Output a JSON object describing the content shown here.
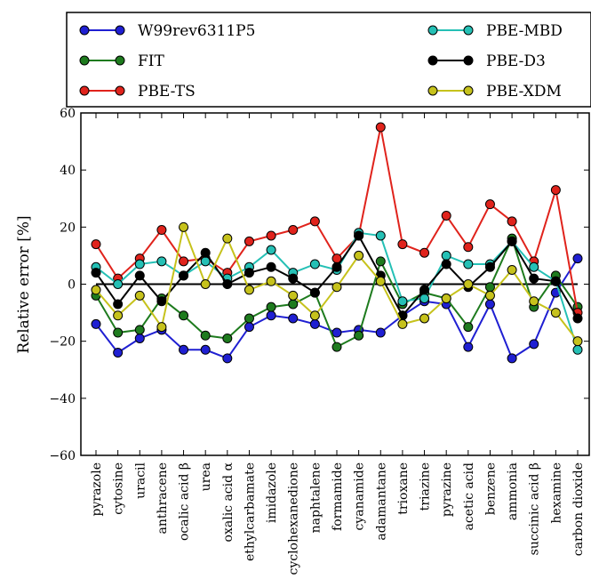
{
  "chart_data": {
    "type": "line",
    "title": "",
    "xlabel": "",
    "ylabel": "Relative error [%]",
    "ylim": [
      -60,
      60
    ],
    "yticks": [
      -60,
      -40,
      -20,
      0,
      20,
      40,
      60
    ],
    "ytick_labels": [
      "−60",
      "−40",
      "−20",
      "0",
      "20",
      "40",
      "60"
    ],
    "grid": false,
    "legend_position": "top",
    "zero_line": true,
    "categories": [
      "pyrazole",
      "cytosine",
      "uracil",
      "anthracene",
      "ocalic acid β",
      "urea",
      "oxalic acid α",
      "ethylcarbamate",
      "imidazole",
      "cyclohexanedione",
      "naphtalene",
      "formamide",
      "cyanamide",
      "adamantane",
      "trioxane",
      "triazine",
      "pyrazine",
      "acetic acid",
      "benzene",
      "ammonia",
      "succinic acid β",
      "hexamine",
      "carbon dioxide"
    ],
    "series": [
      {
        "name": "W99rev6311P5",
        "color": "#1f1fd2",
        "values": [
          -14,
          -24,
          -19,
          -16,
          -23,
          -23,
          -26,
          -15,
          -11,
          -12,
          -14,
          -17,
          -16,
          -17,
          -11,
          -6,
          -7,
          -22,
          -7,
          -26,
          -21,
          -3,
          9
        ]
      },
      {
        "name": "FIT",
        "color": "#1e7b1e",
        "values": [
          -4,
          -17,
          -16,
          -5,
          -11,
          -18,
          -19,
          -12,
          -8,
          -7,
          -3,
          -22,
          -18,
          8,
          -7,
          -3,
          -5,
          -15,
          -1,
          16,
          -8,
          3,
          -8
        ]
      },
      {
        "name": "PBE-TS",
        "color": "#e0231c",
        "values": [
          14,
          2,
          9,
          19,
          8,
          9,
          4,
          15,
          17,
          19,
          22,
          9,
          17,
          55,
          14,
          11,
          24,
          13,
          28,
          22,
          8,
          33,
          -10
        ]
      },
      {
        "name": "PBE-MBD",
        "color": "#25c0b5",
        "values": [
          6,
          0,
          7,
          8,
          3,
          8,
          2,
          6,
          12,
          4,
          7,
          5,
          18,
          17,
          -6,
          -5,
          10,
          7,
          7,
          15,
          6,
          1,
          -23
        ]
      },
      {
        "name": "PBE-D3",
        "color": "#000000",
        "values": [
          4,
          -7,
          3,
          -6,
          3,
          11,
          0,
          4,
          6,
          2,
          -3,
          6,
          17,
          3,
          -11,
          -2,
          7,
          -1,
          6,
          15,
          2,
          1,
          -12
        ]
      },
      {
        "name": "PBE-XDM",
        "color": "#c6c21c",
        "values": [
          -2,
          -11,
          -4,
          -15,
          20,
          0,
          16,
          -2,
          1,
          -4,
          -11,
          -1,
          10,
          1,
          -14,
          -12,
          -5,
          0,
          -4,
          5,
          -6,
          -10,
          -20
        ]
      }
    ]
  }
}
